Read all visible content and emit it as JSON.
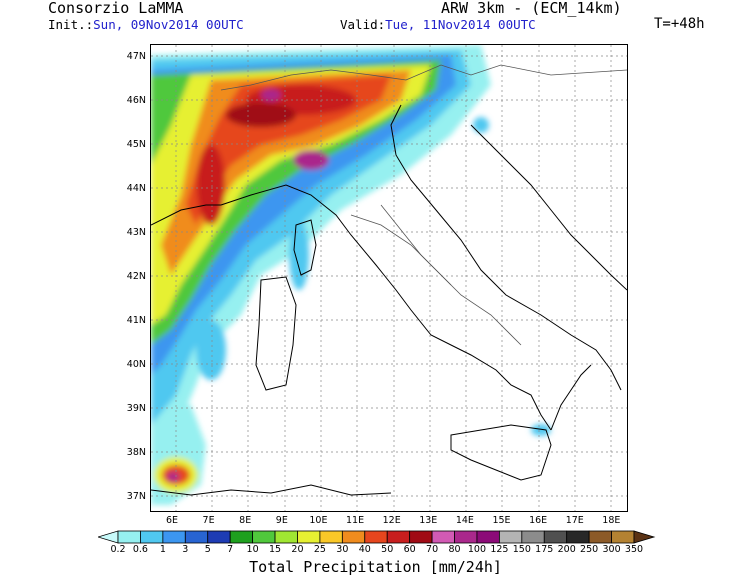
{
  "header": {
    "org": "Consorzio LaMMA",
    "model": "ARW 3km - (ECM_14km)",
    "init_label": "Init.:",
    "init_value": "Sun, 09Nov2014 00UTC",
    "valid_label": "Valid:",
    "valid_value": "Tue, 11Nov2014 00UTC",
    "lead": "T=+48h"
  },
  "map": {
    "lat_labels": [
      "47N",
      "46N",
      "45N",
      "44N",
      "43N",
      "42N",
      "41N",
      "40N",
      "39N",
      "38N",
      "37N"
    ],
    "lon_labels": [
      "6E",
      "7E",
      "8E",
      "9E",
      "10E",
      "11E",
      "12E",
      "13E",
      "14E",
      "15E",
      "16E",
      "17E",
      "18E"
    ],
    "lat_range": [
      36.7,
      47.3
    ],
    "lon_range": [
      5.4,
      18.4
    ]
  },
  "colorbar": {
    "title": "Total Precipitation [mm/24h]",
    "levels": [
      "0.2",
      "0.6",
      "1",
      "3",
      "5",
      "7",
      "10",
      "15",
      "20",
      "25",
      "30",
      "40",
      "50",
      "60",
      "70",
      "80",
      "100",
      "125",
      "150",
      "175",
      "200",
      "250",
      "300",
      "350"
    ],
    "colors": [
      "#c8fafa",
      "#96f0f0",
      "#50c8f0",
      "#3c96f0",
      "#2864d2",
      "#1e3cb4",
      "#1ea01e",
      "#50c83c",
      "#a0e632",
      "#e6f032",
      "#fac828",
      "#f08c1e",
      "#e6461e",
      "#c81e1e",
      "#a00a14",
      "#d25ab4",
      "#aa288c",
      "#8c0a78",
      "#b4b4b4",
      "#8c8c8c",
      "#505050",
      "#282828",
      "#8c5a28",
      "#b48232",
      "#5a3214"
    ]
  }
}
